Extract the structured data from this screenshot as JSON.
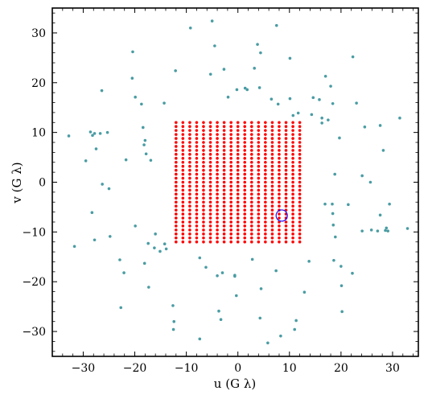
{
  "chart_data": {
    "type": "scatter",
    "xlabel": "u (G λ)",
    "ylabel": "v (G λ)",
    "xlim": [
      -36,
      35
    ],
    "ylim": [
      -35,
      35
    ],
    "x_ticks": [
      -30,
      -20,
      -10,
      0,
      10,
      20,
      30
    ],
    "y_ticks": [
      -30,
      -20,
      -10,
      0,
      10,
      20,
      30
    ],
    "x_tick_labels": [
      "−30",
      "−20",
      "−10",
      "0",
      "10",
      "20",
      "30"
    ],
    "y_tick_labels": [
      "−30",
      "−20",
      "−10",
      "0",
      "10",
      "20",
      "30"
    ],
    "grid": false,
    "colors": {
      "baselines": "#4a9ca3",
      "grid_points": "#ff0000",
      "highlight": "#1a0dff"
    },
    "grid_series": {
      "x": [
        -12,
        -10.67,
        -9.33,
        -8,
        -6.67,
        -5.33,
        -4,
        -2.67,
        -1.33,
        0,
        1.33,
        2.67,
        4,
        5.33,
        6.67,
        8,
        9.33,
        10.67,
        12
      ],
      "y_from": -12,
      "y_to": 12,
      "y_step": 0.8
    },
    "highlight_point": {
      "x": 8.5,
      "y": -6.7
    },
    "baseline_points": [
      [
        -32.8,
        9.3
      ],
      [
        -29.5,
        4.3
      ],
      [
        -28.6,
        10.1
      ],
      [
        -28.2,
        9.4
      ],
      [
        -27.8,
        9.8
      ],
      [
        -26.7,
        9.8
      ],
      [
        -25.3,
        10
      ],
      [
        -27.5,
        6.7
      ],
      [
        -26.4,
        18.4
      ],
      [
        -20.4,
        26.2
      ],
      [
        -20.5,
        20.9
      ],
      [
        -19.9,
        17.1
      ],
      [
        -18.7,
        15.7
      ],
      [
        -18.4,
        11
      ],
      [
        -18,
        8.4
      ],
      [
        -18.2,
        7.5
      ],
      [
        -17.8,
        5.7
      ],
      [
        -16.9,
        4.4
      ],
      [
        -21.7,
        4.5
      ],
      [
        -26.3,
        -0.4
      ],
      [
        -25,
        -1.3
      ],
      [
        -28.3,
        -6.1
      ],
      [
        -31.7,
        -12.9
      ],
      [
        -27.8,
        -11.6
      ],
      [
        -24.8,
        -10.9
      ],
      [
        -19.9,
        -8.8
      ],
      [
        -16,
        -10.4
      ],
      [
        -17.4,
        -12.3
      ],
      [
        -16.2,
        -13.2
      ],
      [
        -15.1,
        -13.9
      ],
      [
        -14.2,
        -12.4
      ],
      [
        -13.9,
        -13.4
      ],
      [
        -18.1,
        -16.3
      ],
      [
        -17.3,
        -21.1
      ],
      [
        -22.9,
        -15.6
      ],
      [
        -22.1,
        -18.2
      ],
      [
        -22.7,
        -25.2
      ],
      [
        -12.6,
        -24.8
      ],
      [
        -12.5,
        -29.6
      ],
      [
        -12.4,
        -28
      ],
      [
        -14.3,
        15.9
      ],
      [
        -12.1,
        22.4
      ],
      [
        -9.2,
        31
      ],
      [
        -5,
        32.4
      ],
      [
        -4.5,
        27.4
      ],
      [
        -2.7,
        22.7
      ],
      [
        -5.3,
        21.7
      ],
      [
        -1.9,
        17.1
      ],
      [
        -0.2,
        18.6
      ],
      [
        1.4,
        18.9
      ],
      [
        1.8,
        18.6
      ],
      [
        4.2,
        19
      ],
      [
        3.2,
        22.9
      ],
      [
        3.8,
        27.7
      ],
      [
        4.4,
        26
      ],
      [
        7.5,
        31.5
      ],
      [
        6.5,
        16.7
      ],
      [
        7.8,
        15.7
      ],
      [
        10.1,
        16.8
      ],
      [
        10.7,
        13.4
      ],
      [
        11.7,
        13.9
      ],
      [
        10.1,
        24.9
      ],
      [
        14.6,
        17
      ],
      [
        15.8,
        16.6
      ],
      [
        16.3,
        12.9
      ],
      [
        17,
        21.3
      ],
      [
        18,
        19.3
      ],
      [
        18.4,
        15.8
      ],
      [
        14.3,
        13.6
      ],
      [
        17.5,
        12.5
      ],
      [
        16.3,
        11.9
      ],
      [
        19.7,
        8.9
      ],
      [
        18.8,
        1.6
      ],
      [
        18.3,
        -4.4
      ],
      [
        18.4,
        -6.3
      ],
      [
        18.5,
        -8.6
      ],
      [
        16.9,
        -4.4
      ],
      [
        18.9,
        -11
      ],
      [
        21.4,
        -4.5
      ],
      [
        24.1,
        1.3
      ],
      [
        25.7,
        0
      ],
      [
        24.6,
        11.1
      ],
      [
        27.6,
        11.4
      ],
      [
        28.2,
        6.4
      ],
      [
        22.3,
        25.2
      ],
      [
        23,
        15.9
      ],
      [
        31.4,
        12.9
      ],
      [
        29.4,
        -4.4
      ],
      [
        27.6,
        -6.6
      ],
      [
        27.1,
        -9.8
      ],
      [
        28.6,
        -9.7
      ],
      [
        28.8,
        -9.2
      ],
      [
        29.1,
        -9.8
      ],
      [
        25.9,
        -9.6
      ],
      [
        24.1,
        -9.8
      ],
      [
        32.9,
        -9.3
      ],
      [
        18.6,
        -15.7
      ],
      [
        20,
        -16.9
      ],
      [
        22.2,
        -18.3
      ],
      [
        20.1,
        -20.8
      ],
      [
        20.2,
        -26
      ],
      [
        13.8,
        -15.9
      ],
      [
        12.9,
        -22.1
      ],
      [
        11.3,
        -27.8
      ],
      [
        11,
        -29.6
      ],
      [
        8.3,
        -30.9
      ],
      [
        4.3,
        -27.3
      ],
      [
        5.8,
        -32.3
      ],
      [
        7.4,
        -17.8
      ],
      [
        4.5,
        -21.4
      ],
      [
        2.8,
        -15.5
      ],
      [
        -0.6,
        -18.7
      ],
      [
        -0.6,
        -18.9
      ],
      [
        -0.3,
        -22.8
      ],
      [
        -3,
        -18.2
      ],
      [
        -4,
        -18.8
      ],
      [
        -6.2,
        -17.1
      ],
      [
        -7.4,
        -15.2
      ],
      [
        -3.7,
        -25.9
      ],
      [
        -3.3,
        -27.6
      ],
      [
        -7.4,
        -31.5
      ]
    ]
  }
}
